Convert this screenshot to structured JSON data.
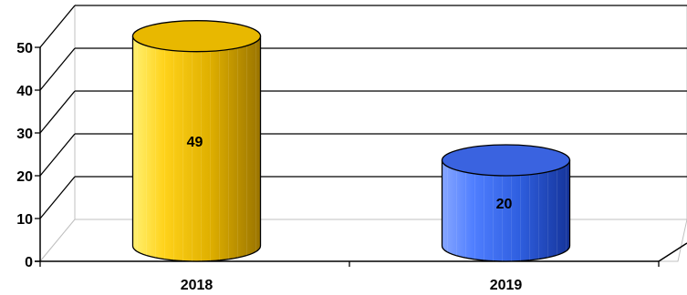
{
  "chart_data": {
    "type": "bar",
    "bar_shape": "cylinder-3d",
    "title": "",
    "xlabel": "",
    "ylabel": "",
    "categories": [
      "2018",
      "2019"
    ],
    "values": [
      49,
      20
    ],
    "value_labels": [
      "49",
      "20"
    ],
    "ylim": [
      0,
      50
    ],
    "y_ticks": [
      "0",
      "10",
      "20",
      "30",
      "40",
      "50"
    ],
    "grid": true,
    "legend": "none",
    "bar_colors": [
      "#f0c000",
      "#3b6cf0"
    ],
    "grid_color": "#000000",
    "wall_color": "#c0c0c0"
  }
}
